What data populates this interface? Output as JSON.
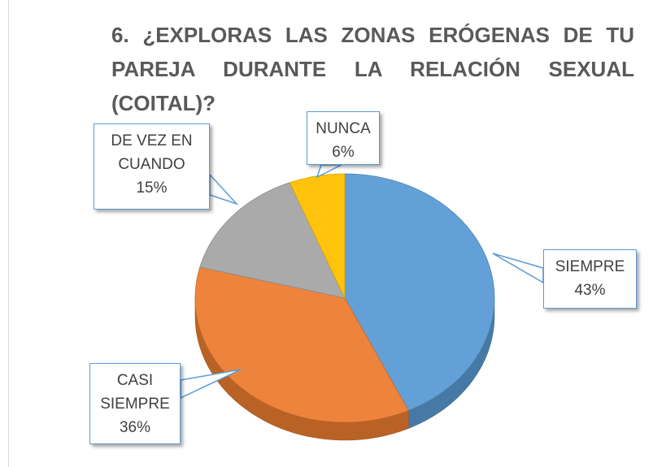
{
  "chart_data": {
    "type": "pie",
    "title": "6. ¿EXPLORAS LAS ZONAS ERÓGENAS DE TU PAREJA DURANTE LA RELACIÓN SEXUAL (COITAL)?",
    "categories": [
      "SIEMPRE",
      "CASI SIEMPRE",
      "DE VEZ EN CUANDO",
      "NUNCA"
    ],
    "values": [
      43,
      36,
      15,
      6
    ],
    "value_labels": [
      "43%",
      "36%",
      "15%",
      "6%"
    ],
    "colors": [
      "#5b9bd5",
      "#ed7d31",
      "#a5a5a5",
      "#ffc000"
    ]
  }
}
